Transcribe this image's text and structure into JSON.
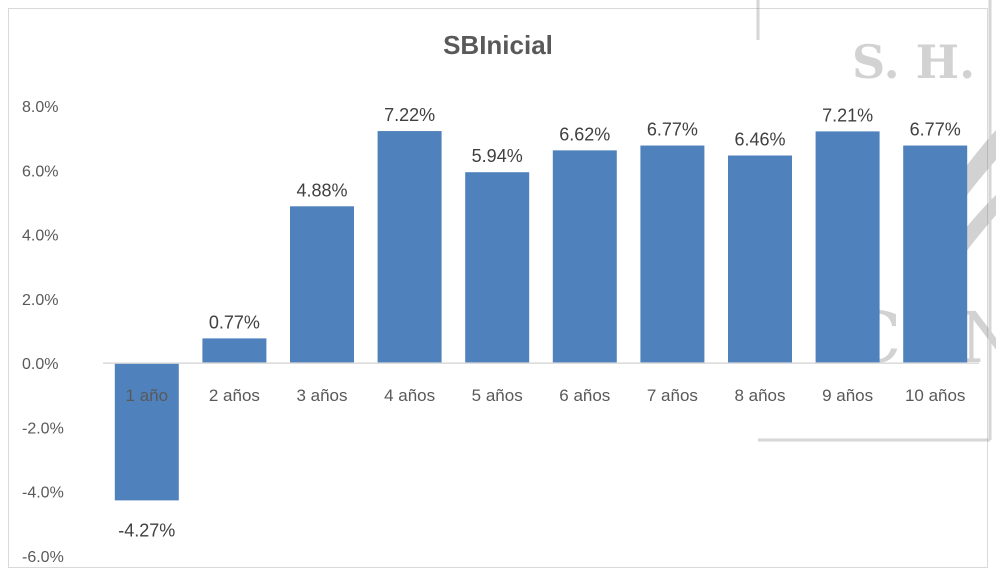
{
  "chart_data": {
    "type": "bar",
    "title": "SBInicial",
    "categories": [
      "1 año",
      "2 años",
      "3 años",
      "4 años",
      "5 años",
      "6 años",
      "7 años",
      "8 años",
      "9 años",
      "10 años"
    ],
    "values": [
      -4.27,
      0.77,
      4.88,
      7.22,
      5.94,
      6.62,
      6.77,
      6.46,
      7.21,
      6.77
    ],
    "data_labels": [
      "-4.27%",
      "0.77%",
      "4.88%",
      "7.22%",
      "5.94%",
      "6.62%",
      "6.77%",
      "6.46%",
      "7.21%",
      "6.77%"
    ],
    "ylim": [
      -6,
      8
    ],
    "yticks": [
      8,
      6,
      4,
      2,
      0,
      -2,
      -4,
      -6
    ],
    "ytick_labels": [
      "8.0%",
      "6.0%",
      "4.0%",
      "2.0%",
      "0.0%",
      "-2.0%",
      "-4.0%",
      "-6.0%"
    ],
    "grid": false,
    "bar_color": "#4f81bd",
    "xlabel": "",
    "ylabel": ""
  },
  "watermark": {
    "text_top": "S. H.",
    "text_bottom": "CON"
  }
}
